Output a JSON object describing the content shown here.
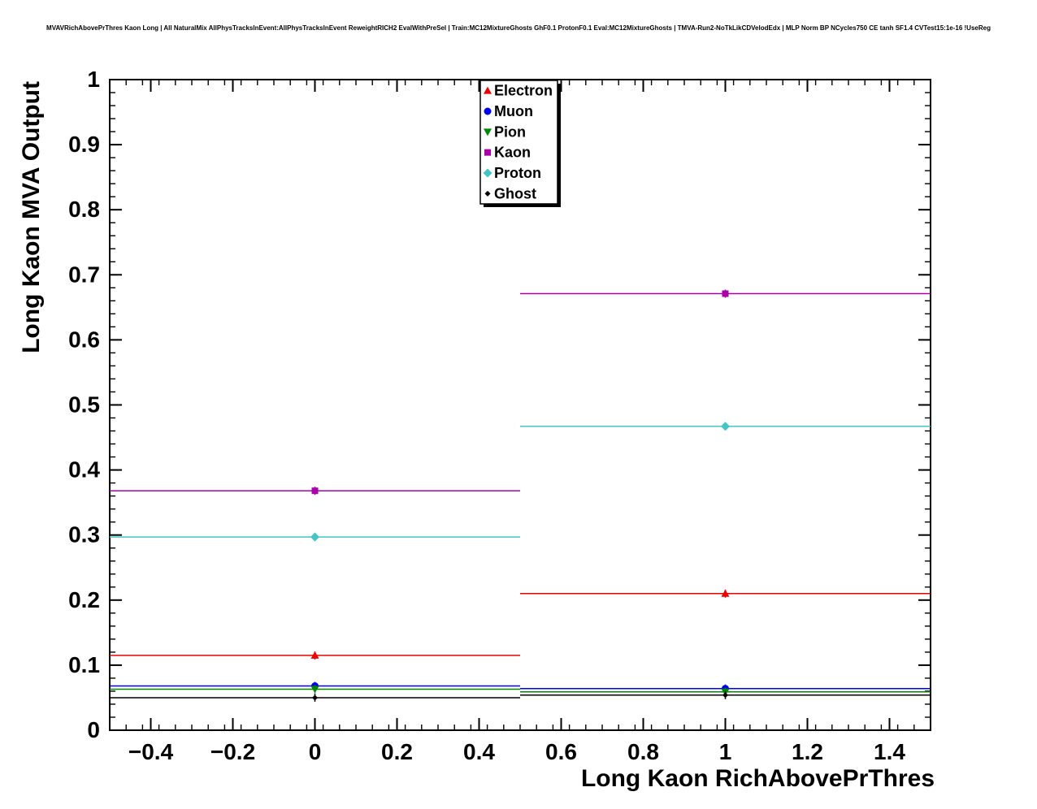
{
  "header": {
    "title": "MVAVRichAbovePrThres Kaon Long | All NaturalMix AllPhysTracksInEvent:AllPhysTracksInEvent ReweightRICH2 EvalWithPreSel | Train:MC12MixtureGhosts GhF0.1 ProtonF0.1 Eval:MC12MixtureGhosts | TMVA-Run2-NoTkLikCDVelodEdx | MLP Norm BP NCycles750 CE tanh SF1.4 CVTest15:1e-16 !UseReg"
  },
  "chart_data": {
    "type": "scatter",
    "title": "",
    "xlabel": "Long Kaon RichAbovePrThres",
    "ylabel": "Long Kaon MVA Output",
    "xlim": [
      -0.5,
      1.5
    ],
    "ylim": [
      0,
      1
    ],
    "x_tick_values": [
      -0.4,
      -0.2,
      0,
      0.2,
      0.4,
      0.6,
      0.8,
      1,
      1.2,
      1.4
    ],
    "x_tick_labels": [
      "−0.4",
      "−0.2",
      "0",
      "0.2",
      "0.4",
      "0.6",
      "0.8",
      "1",
      "1.2",
      "1.4"
    ],
    "y_tick_values": [
      0,
      0.1,
      0.2,
      0.3,
      0.4,
      0.5,
      0.6,
      0.7,
      0.8,
      0.9,
      1
    ],
    "y_tick_labels": [
      "0",
      "0.1",
      "0.2",
      "0.3",
      "0.4",
      "0.5",
      "0.6",
      "0.7",
      "0.8",
      "0.9",
      "1"
    ],
    "x_minor_step": 0.04,
    "y_minor_step": 0.02,
    "grid": false,
    "bins": {
      "centers": [
        0,
        1
      ],
      "half_width": 0.5
    },
    "series": [
      {
        "name": "Electron",
        "color": "#ee0000",
        "marker": "triangle-up",
        "values": [
          0.115,
          0.21
        ]
      },
      {
        "name": "Muon",
        "color": "#0000ee",
        "marker": "circle",
        "values": [
          0.068,
          0.064
        ]
      },
      {
        "name": "Pion",
        "color": "#008800",
        "marker": "triangle-down",
        "values": [
          0.063,
          0.059
        ]
      },
      {
        "name": "Kaon",
        "color": "#aa00aa",
        "marker": "square",
        "values": [
          0.368,
          0.671
        ]
      },
      {
        "name": "Proton",
        "color": "#44c4c4",
        "marker": "diamond",
        "values": [
          0.297,
          0.467
        ]
      },
      {
        "name": "Ghost",
        "color": "#000000",
        "marker": "small-diamond",
        "values": [
          0.05,
          0.054
        ]
      }
    ],
    "legend": {
      "position": "top-center",
      "entries": [
        "Electron",
        "Muon",
        "Pion",
        "Kaon",
        "Proton",
        "Ghost"
      ]
    }
  }
}
